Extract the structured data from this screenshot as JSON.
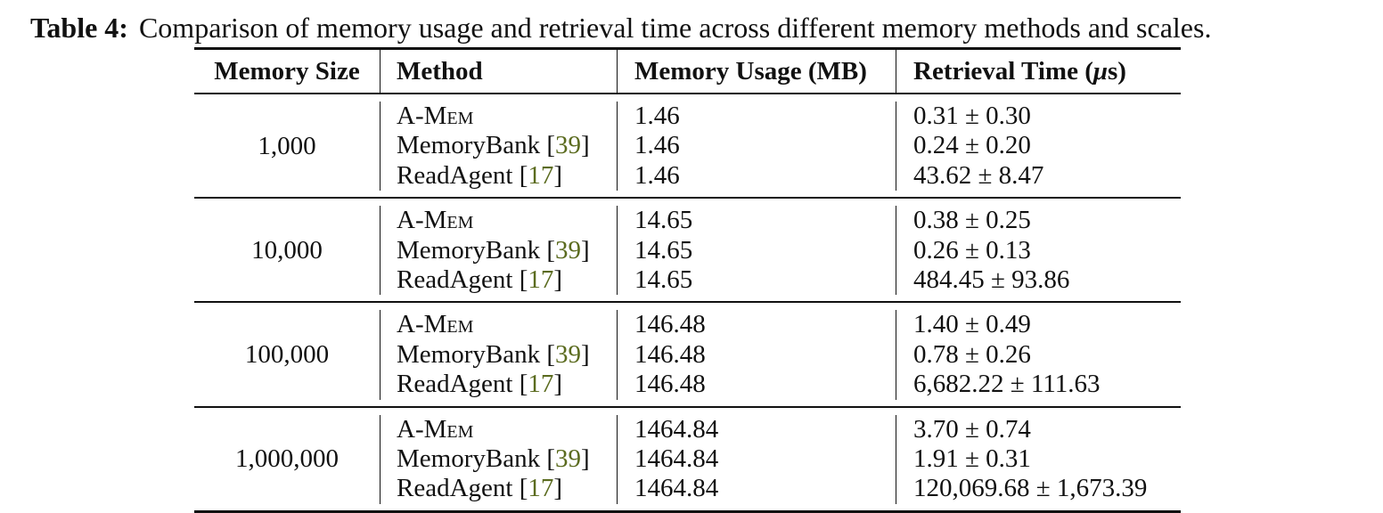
{
  "caption": {
    "label": "Table 4:",
    "text": "Comparison of memory usage and retrieval time across different memory methods and scales."
  },
  "headers": {
    "memory_size": "Memory Size",
    "method": "Method",
    "memory_usage": "Memory Usage (MB)",
    "retrieval_time_prefix": "Retrieval Time (",
    "retrieval_time_unit": "μ",
    "retrieval_time_suffix": "s)"
  },
  "methods": {
    "amem": "A-Mem",
    "memorybank": "MemoryBank",
    "memorybank_cite": "39",
    "readagent": "ReadAgent",
    "readagent_cite": "17"
  },
  "groups": [
    {
      "size": "1,000",
      "usage": [
        "1.46",
        "1.46",
        "1.46"
      ],
      "time": [
        "0.31 ± 0.30",
        "0.24 ± 0.20",
        "43.62 ± 8.47"
      ]
    },
    {
      "size": "10,000",
      "usage": [
        "14.65",
        "14.65",
        "14.65"
      ],
      "time": [
        "0.38 ± 0.25",
        "0.26 ± 0.13",
        "484.45 ± 93.86"
      ]
    },
    {
      "size": "100,000",
      "usage": [
        "146.48",
        "146.48",
        "146.48"
      ],
      "time": [
        "1.40 ± 0.49",
        "0.78 ± 0.26",
        "6,682.22 ± 111.63"
      ]
    },
    {
      "size": "1,000,000",
      "usage": [
        "1464.84",
        "1464.84",
        "1464.84"
      ],
      "time": [
        "3.70 ± 0.74",
        "1.91 ± 0.31",
        "120,069.68 ± 1,673.39"
      ]
    }
  ]
}
